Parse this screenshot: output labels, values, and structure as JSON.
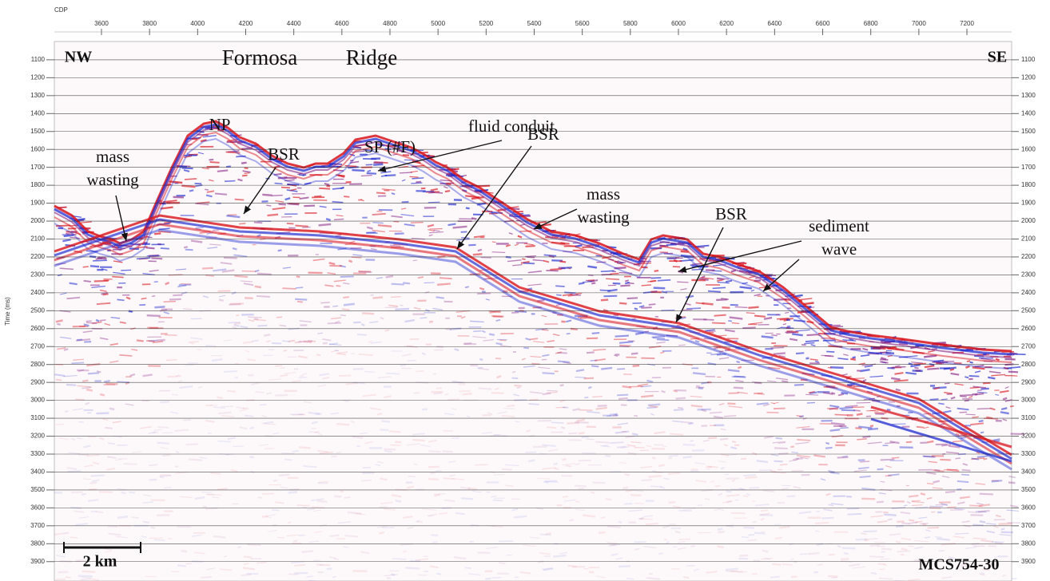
{
  "chart_data": {
    "type": "seismic",
    "x_label": "CDP",
    "y_label": "Time (ms)",
    "xlim": [
      3404,
      7386
    ],
    "ylim": [
      998,
      4008
    ],
    "xticks": [
      3600,
      3800,
      4000,
      4200,
      4400,
      4600,
      4800,
      5000,
      5200,
      5400,
      5600,
      5800,
      6000,
      6200,
      6400,
      6600,
      6800,
      7000,
      7200
    ],
    "yticks": [
      1100,
      1200,
      1300,
      1400,
      1500,
      1600,
      1700,
      1800,
      1900,
      2000,
      2100,
      2200,
      2300,
      2400,
      2500,
      2600,
      2700,
      2800,
      2900,
      3000,
      3100,
      3200,
      3300,
      3400,
      3500,
      3600,
      3700,
      3800,
      3900
    ],
    "grid": true,
    "annotations": [
      {
        "lines": [
          "NW"
        ]
      },
      {
        "lines": [
          "Formosa"
        ]
      },
      {
        "lines": [
          "Ridge"
        ]
      },
      {
        "lines": [
          "SE"
        ]
      },
      {
        "lines": [
          "NP"
        ]
      },
      {
        "lines": [
          "BSR"
        ]
      },
      {
        "lines": [
          "SP (#F)"
        ]
      },
      {
        "lines": [
          "fluid conduit"
        ]
      },
      {
        "lines": [
          "mass",
          "wasting"
        ]
      },
      {
        "lines": [
          "BSR"
        ]
      },
      {
        "lines": [
          "mass",
          "wasting"
        ]
      },
      {
        "lines": [
          "BSR"
        ]
      },
      {
        "lines": [
          "sediment",
          "wave"
        ]
      },
      {
        "lines": [
          "2 km"
        ]
      },
      {
        "lines": [
          "MCS754-30"
        ]
      }
    ]
  }
}
